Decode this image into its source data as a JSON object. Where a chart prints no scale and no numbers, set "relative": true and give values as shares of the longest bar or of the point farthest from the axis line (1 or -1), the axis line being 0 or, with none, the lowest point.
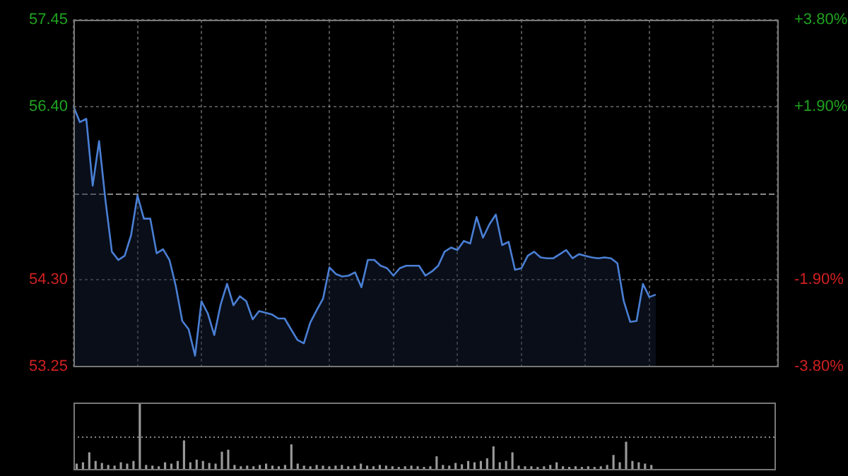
{
  "chart_data": [
    {
      "type": "area",
      "categories": [
        null,
        null,
        null,
        null,
        null,
        null,
        null,
        null,
        null,
        null,
        null,
        null,
        null,
        null,
        null,
        null,
        null,
        null,
        null,
        null,
        null,
        null,
        null,
        null,
        null,
        null,
        null,
        null,
        null,
        null,
        null,
        null,
        null,
        null,
        null,
        null,
        null,
        null,
        null,
        null,
        null,
        null,
        null,
        null,
        null,
        null,
        null,
        null,
        null,
        null,
        null,
        null,
        null,
        null,
        null,
        null,
        null,
        null,
        null,
        null,
        null,
        null,
        null,
        null,
        null,
        null,
        null,
        null,
        null,
        null,
        null,
        null,
        null,
        null,
        null,
        null,
        null,
        null,
        null,
        null,
        null,
        null,
        null,
        null,
        null,
        null,
        null,
        null,
        null,
        null,
        null,
        null,
        null,
        null,
        null,
        null,
        null,
        null,
        null,
        null,
        null,
        null,
        null,
        null,
        null,
        null,
        null,
        null,
        null,
        null,
        null
      ],
      "series": [
        {
          "color": "#4a7fd4",
          "values": [
            56.4,
            56.21,
            56.25,
            55.44,
            55.98,
            55.26,
            54.64,
            54.54,
            54.59,
            54.84,
            55.32,
            55.04,
            55.04,
            54.62,
            54.67,
            54.54,
            54.22,
            53.8,
            53.7,
            53.38,
            54.04,
            53.89,
            53.63,
            54.0,
            54.25,
            53.99,
            54.1,
            54.04,
            53.82,
            53.92,
            53.9,
            53.88,
            53.83,
            53.83,
            53.7,
            53.57,
            53.53,
            53.78,
            53.93,
            54.07,
            54.45,
            54.37,
            54.34,
            54.35,
            54.39,
            54.21,
            54.54,
            54.54,
            54.47,
            54.44,
            54.35,
            54.44,
            54.47,
            54.47,
            54.47,
            54.35,
            54.4,
            54.47,
            54.64,
            54.69,
            54.66,
            54.77,
            54.74,
            55.06,
            54.81,
            54.97,
            55.09,
            54.72,
            54.76,
            54.42,
            54.44,
            54.59,
            54.64,
            54.57,
            54.56,
            54.56,
            54.61,
            54.66,
            54.56,
            54.61,
            54.59,
            54.57,
            54.56,
            54.57,
            54.56,
            54.5,
            54.04,
            53.79,
            53.8,
            54.25,
            54.09,
            54.12,
            null,
            null,
            null,
            null,
            null,
            null,
            null,
            null,
            null,
            null,
            null,
            null,
            null,
            null,
            null,
            null,
            null,
            null,
            null
          ]
        }
      ],
      "ylim": [
        53.25,
        57.45
      ],
      "yticks": [
        {
          "value": 57.45,
          "label": "57.45"
        },
        {
          "value": 56.4,
          "label": "56.40"
        },
        {
          "value": 54.3,
          "label": "54.30"
        },
        {
          "value": 53.25,
          "label": "53.25"
        }
      ],
      "y2lim": [
        -3.8,
        3.8
      ],
      "y2ticks": [
        {
          "value": 3.8,
          "label": "+3.80%"
        },
        {
          "value": 1.9,
          "label": "+1.90%"
        },
        {
          "value": -1.9,
          "label": "-1.90%"
        },
        {
          "value": -3.8,
          "label": "-3.80%"
        }
      ],
      "ref_lines": [
        {
          "axis": "y",
          "value": 55.35
        }
      ],
      "grid": true
    },
    {
      "type": "bar",
      "relative": true,
      "categories": [
        null,
        null,
        null,
        null,
        null,
        null,
        null,
        null,
        null,
        null,
        null,
        null,
        null,
        null,
        null,
        null,
        null,
        null,
        null,
        null,
        null,
        null,
        null,
        null,
        null,
        null,
        null,
        null,
        null,
        null,
        null,
        null,
        null,
        null,
        null,
        null,
        null,
        null,
        null,
        null,
        null,
        null,
        null,
        null,
        null,
        null,
        null,
        null,
        null,
        null,
        null,
        null,
        null,
        null,
        null,
        null,
        null,
        null,
        null,
        null,
        null,
        null,
        null,
        null,
        null,
        null,
        null,
        null,
        null,
        null,
        null,
        null,
        null,
        null,
        null,
        null,
        null,
        null,
        null,
        null,
        null,
        null,
        null,
        null,
        null,
        null,
        null,
        null,
        null,
        null,
        null,
        null,
        null,
        null,
        null,
        null,
        null,
        null,
        null,
        null,
        null,
        null,
        null,
        null,
        null,
        null,
        null,
        null,
        null,
        null,
        null
      ],
      "values": [
        0.08,
        0.1,
        0.25,
        0.12,
        0.09,
        0.06,
        0.05,
        0.1,
        0.08,
        0.12,
        1,
        0.06,
        0.05,
        0.04,
        0.1,
        0.08,
        0.12,
        0.43,
        0.1,
        0.14,
        0.12,
        0.09,
        0.08,
        0.26,
        0.29,
        0.06,
        0.04,
        0.05,
        0.04,
        0.06,
        0.08,
        0.05,
        0.04,
        0.06,
        0.37,
        0.08,
        0.05,
        0.04,
        0.06,
        0.05,
        0.04,
        0.05,
        0.06,
        0.04,
        0.05,
        0.08,
        0.05,
        0.04,
        0.06,
        0.05,
        0.04,
        0.03,
        0.04,
        0.05,
        0.04,
        0.03,
        0.04,
        0.19,
        0.06,
        0.05,
        0.09,
        0.07,
        0.12,
        0.1,
        0.12,
        0.16,
        0.34,
        0.1,
        0.12,
        0.25,
        0.05,
        0.04,
        0.04,
        0.03,
        0.04,
        0.06,
        0.1,
        0.04,
        0.03,
        0.04,
        0.03,
        0.04,
        0.03,
        0.04,
        0.06,
        0.21,
        0.1,
        0.41,
        0.12,
        0.1,
        0.08,
        0.06,
        null,
        null,
        null,
        null,
        null,
        null,
        null,
        null,
        null,
        null,
        null,
        null,
        null,
        null,
        null,
        null,
        null,
        null,
        null
      ],
      "color": "#9a9a9a",
      "ref_lines": [
        {
          "axis": "y",
          "value": 0.5,
          "line_style": "dotted"
        }
      ]
    }
  ]
}
